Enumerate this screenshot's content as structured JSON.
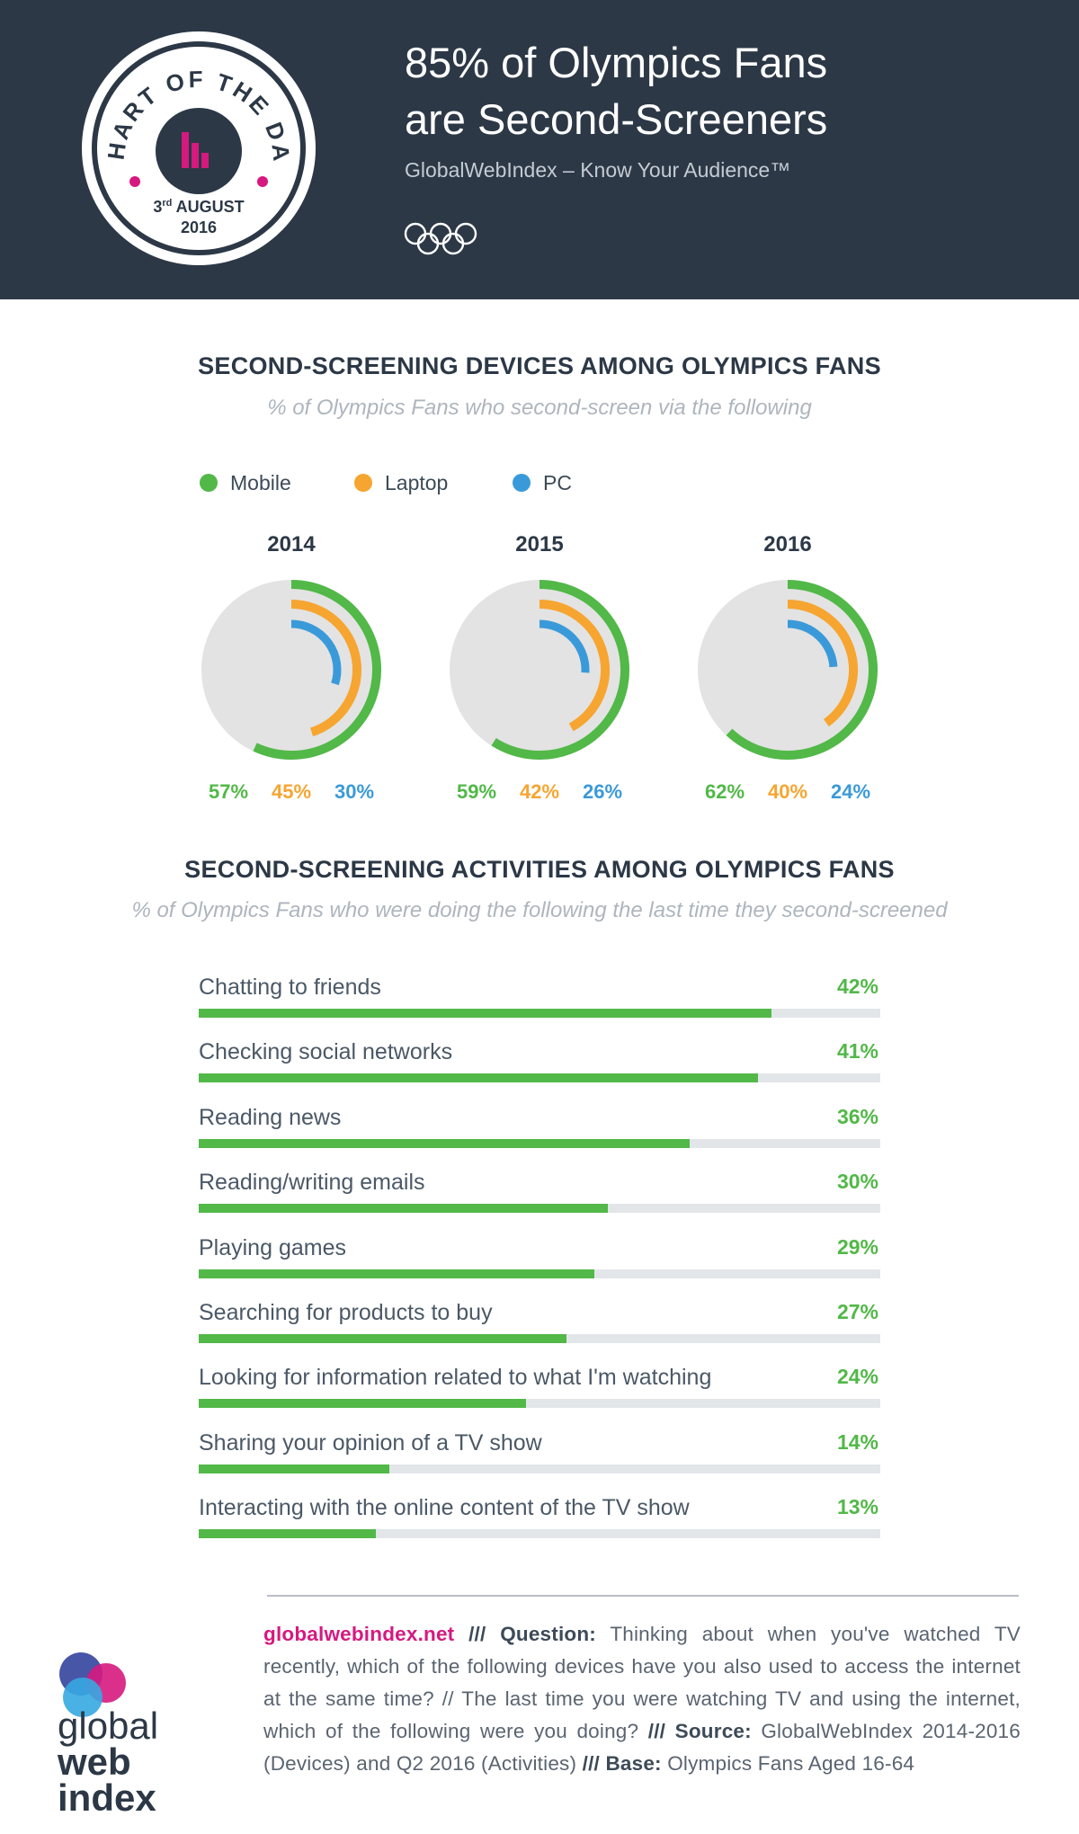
{
  "header": {
    "badge": {
      "top_text": "CHART OF THE DAY",
      "day": "3",
      "day_suffix": "rd",
      "month": "AUGUST",
      "year": "2016"
    },
    "title_line1": "85% of Olympics Fans",
    "title_line2": "are Second-Screeners",
    "subtitle": "GlobalWebIndex – Know Your Audience™"
  },
  "colors": {
    "mobile": "#52b848",
    "laptop": "#f6a531",
    "pc": "#3a9ad9",
    "header_bg": "#2c3846",
    "brand": "#d6197f"
  },
  "devices_section": {
    "title": "SECOND-SCREENING DEVICES AMONG OLYMPICS FANS",
    "subtitle": "% of Olympics Fans who second-screen via the following",
    "legend": [
      "Mobile",
      "Laptop",
      "PC"
    ]
  },
  "activities_section": {
    "title": "SECOND-SCREENING ACTIVITIES AMONG OLYMPICS FANS",
    "subtitle": "% of Olympics Fans who were doing the following the last time they second-screened"
  },
  "chart_data": [
    {
      "type": "radial-bar",
      "title": "SECOND-SCREENING DEVICES AMONG OLYMPICS FANS",
      "categories": [
        "2014",
        "2015",
        "2016"
      ],
      "series": [
        {
          "name": "Mobile",
          "values": [
            57,
            59,
            62
          ],
          "labels": [
            "57%",
            "59%",
            "62%"
          ]
        },
        {
          "name": "Laptop",
          "values": [
            45,
            42,
            40
          ],
          "labels": [
            "45%",
            "42%",
            "40%"
          ]
        },
        {
          "name": "PC",
          "values": [
            30,
            26,
            24
          ],
          "labels": [
            "30%",
            "26%",
            "24%"
          ]
        }
      ]
    },
    {
      "type": "bar",
      "title": "SECOND-SCREENING ACTIVITIES AMONG OLYMPICS FANS",
      "categories": [
        "Chatting to friends",
        "Checking social networks",
        "Reading news",
        "Reading/writing emails",
        "Playing games",
        "Searching for products to buy",
        "Looking for information related to what I'm watching",
        "Sharing your opinion of a TV show",
        "Interacting with the online content of the TV show"
      ],
      "values": [
        42,
        41,
        36,
        30,
        29,
        27,
        24,
        14,
        13
      ],
      "labels": [
        "42%",
        "41%",
        "36%",
        "30%",
        "29%",
        "27%",
        "24%",
        "14%",
        "13%"
      ],
      "xlim": [
        0,
        50
      ]
    }
  ],
  "footer": {
    "logo_line1": "global",
    "logo_line2": "web",
    "logo_line3": "index",
    "site": "globalwebindex.net",
    "sep1": " /// ",
    "question_label": "Question:",
    "question_text": " Thinking about when you've watched TV recently, which of the following devices have you also used to access the internet at the same time? // The last time you were watching TV and using the internet, which of the following were you doing? ",
    "sep2": "/// ",
    "source_label": "Source:",
    "source_text": " GlobalWebIndex 2014-2016 (Devices) and Q2 2016 (Activities) ",
    "sep3": "/// ",
    "base_label": "Base:",
    "base_text": " Olympics Fans Aged 16-64"
  }
}
